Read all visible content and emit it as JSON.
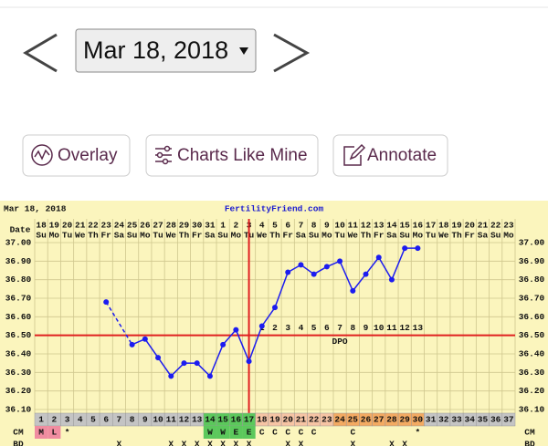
{
  "header": {
    "date": "Mar 18, 2018"
  },
  "buttons": [
    {
      "label": "Overlay"
    },
    {
      "label": "Charts Like Mine"
    },
    {
      "label": "Annotate"
    }
  ],
  "chart_data": {
    "type": "line",
    "title": "FertilityFriend.com",
    "date_stamp": "Mar 18, 2018",
    "date_label": "Date",
    "categories": [
      "18",
      "19",
      "20",
      "21",
      "22",
      "23",
      "24",
      "25",
      "26",
      "27",
      "28",
      "29",
      "30",
      "31",
      "1",
      "2",
      "3",
      "4",
      "5",
      "6",
      "7",
      "8",
      "9",
      "10",
      "11",
      "12",
      "13",
      "14",
      "15",
      "16",
      "17",
      "18",
      "19",
      "20",
      "21",
      "22",
      "23"
    ],
    "weekdays": [
      "Su",
      "Mo",
      "Tu",
      "We",
      "Th",
      "Fr",
      "Sa",
      "Su",
      "Mo",
      "Tu",
      "We",
      "Th",
      "Fr",
      "Sa",
      "Su",
      "Mo",
      "Tu",
      "We",
      "Th",
      "Fr",
      "Sa",
      "Su",
      "Mo",
      "Tu",
      "We",
      "Th",
      "Fr",
      "Sa",
      "Su",
      "Mo",
      "Tu",
      "We",
      "Th",
      "Fr",
      "Sa",
      "Su",
      "Mo"
    ],
    "cycle_days": [
      1,
      2,
      3,
      4,
      5,
      6,
      7,
      8,
      9,
      10,
      11,
      12,
      13,
      14,
      15,
      16,
      17,
      18,
      19,
      20,
      21,
      22,
      23,
      24,
      25,
      26,
      27,
      28,
      29,
      30,
      31,
      32,
      33,
      34,
      35,
      36,
      37
    ],
    "cycle_day_colors": [
      "#c4c4c4",
      "#c4c4c4",
      "#c4c4c4",
      "#c4c4c4",
      "#c4c4c4",
      "#c4c4c4",
      "#c4c4c4",
      "#c4c4c4",
      "#c4c4c4",
      "#c4c4c4",
      "#c4c4c4",
      "#c4c4c4",
      "#c4c4c4",
      "#5cc85c",
      "#5cc85c",
      "#5cc85c",
      "#5cc85c",
      "#f6c4a4",
      "#f6c4a4",
      "#f6c4a4",
      "#f6c4a4",
      "#f6c4a4",
      "#f6c4a4",
      "#f3aa62",
      "#f3aa62",
      "#f3aa62",
      "#f3aa62",
      "#f3aa62",
      "#f3aa62",
      "#f3aa62",
      "#c4c4c4",
      "#c4c4c4",
      "#c4c4c4",
      "#c4c4c4",
      "#c4c4c4",
      "#c4c4c4",
      "#c4c4c4"
    ],
    "values": [
      null,
      null,
      null,
      null,
      null,
      36.68,
      null,
      36.45,
      36.48,
      36.38,
      36.28,
      36.35,
      36.35,
      36.28,
      36.45,
      36.53,
      36.36,
      36.55,
      36.65,
      36.84,
      36.88,
      36.83,
      36.87,
      36.9,
      36.74,
      36.83,
      36.92,
      36.8,
      36.97,
      36.97,
      null,
      null,
      null,
      null,
      null,
      null,
      null
    ],
    "color": "#1c1cf0",
    "ylim": [
      36.1,
      37.0
    ],
    "yticks": [
      {
        "value": 37.0,
        "label": "37.00"
      },
      {
        "value": 36.9,
        "label": "36.90"
      },
      {
        "value": 36.8,
        "label": "36.80"
      },
      {
        "value": 36.7,
        "label": "36.70"
      },
      {
        "value": 36.6,
        "label": "36.60"
      },
      {
        "value": 36.5,
        "label": "36.50"
      },
      {
        "value": 36.4,
        "label": "36.40"
      },
      {
        "value": 36.3,
        "label": "36.30"
      },
      {
        "value": 36.2,
        "label": "36.20"
      },
      {
        "value": 36.1,
        "label": "36.10"
      }
    ],
    "grid": true,
    "coverline": 36.5,
    "ovulation_day": 17,
    "dpo_labels": [
      null,
      null,
      null,
      null,
      null,
      null,
      null,
      null,
      null,
      null,
      null,
      null,
      null,
      null,
      null,
      null,
      null,
      1,
      2,
      3,
      4,
      5,
      6,
      7,
      8,
      9,
      10,
      11,
      12,
      13,
      null,
      null,
      null,
      null,
      null,
      null,
      null
    ],
    "dpo_title": "DPO",
    "cm_label": "CM",
    "cm": [
      "M",
      "L",
      "*",
      null,
      null,
      null,
      null,
      null,
      null,
      null,
      null,
      null,
      null,
      "W",
      "W",
      "E",
      "E",
      "C",
      "C",
      "C",
      "C",
      "C",
      null,
      null,
      "C",
      null,
      null,
      null,
      null,
      "*",
      null,
      null,
      null,
      null,
      null,
      null,
      null
    ],
    "cm_colors": [
      "#f08ca0",
      "#f08ca0",
      null,
      null,
      null,
      null,
      null,
      null,
      null,
      null,
      null,
      null,
      null,
      "#5cc85c",
      "#5cc85c",
      "#5cc85c",
      "#5cc85c",
      null,
      null,
      null,
      null,
      null,
      null,
      null,
      null,
      null,
      null,
      null,
      null,
      null,
      null,
      null,
      null,
      null,
      null,
      null,
      null
    ],
    "bd_label": "BD",
    "bd": [
      null,
      null,
      null,
      null,
      null,
      null,
      "X",
      null,
      null,
      null,
      "X",
      "X",
      "X",
      "X",
      "X",
      "X",
      "X",
      null,
      null,
      "X",
      "X",
      null,
      null,
      null,
      "X",
      null,
      null,
      "X",
      "X",
      null,
      null,
      null,
      null,
      null,
      null,
      null,
      null
    ]
  }
}
